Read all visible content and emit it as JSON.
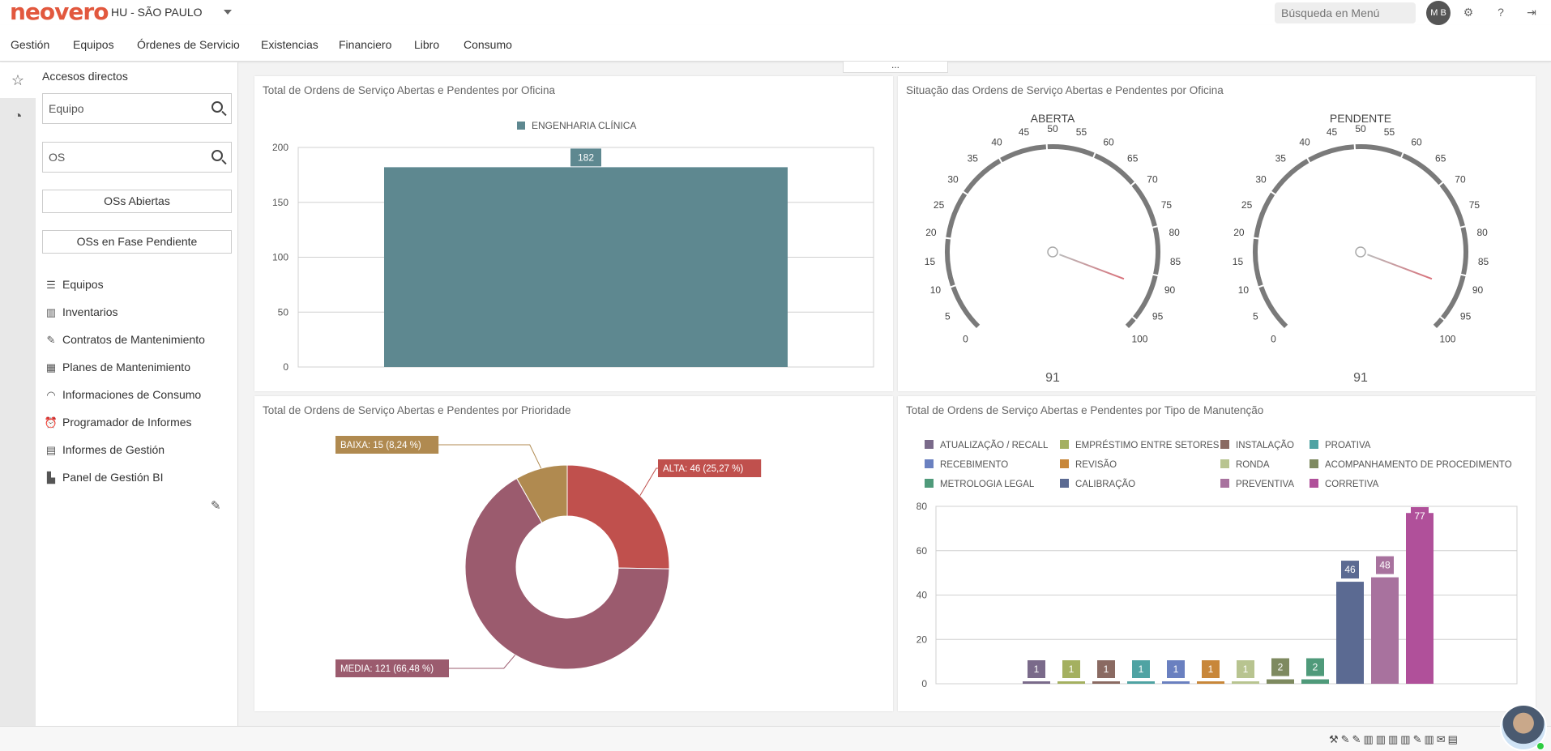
{
  "app": {
    "logo": "neovero",
    "site": "HU - SÃO PAULO",
    "search_placeholder": "Búsqueda en Menú",
    "user_initials": "M B"
  },
  "nav": {
    "items": [
      "Gestión",
      "Equipos",
      "Órdenes de Servicio",
      "Existencias",
      "Financiero",
      "Libro",
      "Consumo"
    ]
  },
  "sidebar": {
    "title": "Accesos directos",
    "equipo_placeholder": "Equipo",
    "os_placeholder": "OS",
    "btn_open": "OSs Abiertas",
    "btn_pending": "OSs en Fase Pendiente",
    "links": [
      {
        "label": "Equipos",
        "icon": "list-icon"
      },
      {
        "label": "Inventarios",
        "icon": "inventory-icon"
      },
      {
        "label": "Contratos de Mantenimiento",
        "icon": "contract-icon"
      },
      {
        "label": "Planes de Mantenimiento",
        "icon": "calendar-icon"
      },
      {
        "label": "Informaciones de Consumo",
        "icon": "gauge-icon"
      },
      {
        "label": "Programador de Informes",
        "icon": "alarm-icon"
      },
      {
        "label": "Informes de Gestión",
        "icon": "document-icon"
      },
      {
        "label": "Panel de Gestión BI",
        "icon": "chart-icon"
      }
    ]
  },
  "chart_data": [
    {
      "type": "bar",
      "title": "Total de Ordens de Serviço Abertas e Pendentes por Oficina",
      "series": [
        {
          "name": "ENGENHARIA CLÍNICA",
          "values": [
            182
          ],
          "color": "#5e8890"
        }
      ],
      "categories": [
        ""
      ],
      "ylim": [
        0,
        200
      ],
      "yticks": [
        "0",
        "50",
        "100",
        "150",
        "200"
      ],
      "data_labels": [
        "182"
      ],
      "grid": true,
      "legend": "top-center"
    },
    {
      "type": "gauge",
      "title": "Situação das Ordens de Serviço Abertas e Pendentes por Oficina",
      "gauges": [
        {
          "label": "ABERTA",
          "value": 91,
          "value_label": "91"
        },
        {
          "label": "PENDENTE",
          "value": 91,
          "value_label": "91"
        }
      ],
      "range": [
        0,
        100
      ],
      "ticks": [
        "0",
        "5",
        "10",
        "15",
        "20",
        "25",
        "30",
        "35",
        "40",
        "45",
        "50",
        "55",
        "60",
        "65",
        "70",
        "75",
        "80",
        "85",
        "90",
        "95",
        "100"
      ]
    },
    {
      "type": "pie",
      "title": "Total de Ordens de Serviço Abertas e Pendentes por Prioridade",
      "slices": [
        {
          "name": "ALTA",
          "value": 46,
          "label": "ALTA: 46 (25,27 %)",
          "color": "#c0504d"
        },
        {
          "name": "MEDIA",
          "value": 121,
          "label": "MEDIA: 121 (66,48 %)",
          "color": "#9b5b6e"
        },
        {
          "name": "BAIXA",
          "value": 15,
          "label": "BAIXA: 15 (8,24 %)",
          "color": "#b08a50"
        }
      ]
    },
    {
      "type": "bar",
      "title": "Total de Ordens de Serviço Abertas e Pendentes por Tipo de Manutenção",
      "ylim": [
        0,
        80
      ],
      "yticks": [
        "0",
        "20",
        "40",
        "60",
        "80"
      ],
      "grid": true,
      "legend": "top",
      "series": [
        {
          "name": "ATUALIZAÇÃO / RECALL",
          "value": 1,
          "color": "#7a6a8a"
        },
        {
          "name": "EMPRÉSTIMO ENTRE SETORES",
          "value": 1,
          "color": "#a4b060"
        },
        {
          "name": "INSTALAÇÃO",
          "value": 1,
          "color": "#8a6a62"
        },
        {
          "name": "PROATIVA",
          "value": 1,
          "color": "#4fa3a3"
        },
        {
          "name": "RECEBIMENTO",
          "value": 1,
          "color": "#6a80c0"
        },
        {
          "name": "REVISÃO",
          "value": 1,
          "color": "#c8873a"
        },
        {
          "name": "RONDA",
          "value": 1,
          "color": "#b8c490"
        },
        {
          "name": "ACOMPANHAMENTO DE PROCEDIMENTO",
          "value": 2,
          "color": "#7e8a60"
        },
        {
          "name": "METROLOGIA LEGAL",
          "value": 2,
          "color": "#4f9a7a"
        },
        {
          "name": "CALIBRAÇÃO",
          "value": 46,
          "color": "#5b6a92"
        },
        {
          "name": "PREVENTIVA",
          "value": 48,
          "color": "#a8729e"
        },
        {
          "name": "CORRETIVA",
          "value": 77,
          "color": "#b0509a"
        }
      ]
    }
  ]
}
